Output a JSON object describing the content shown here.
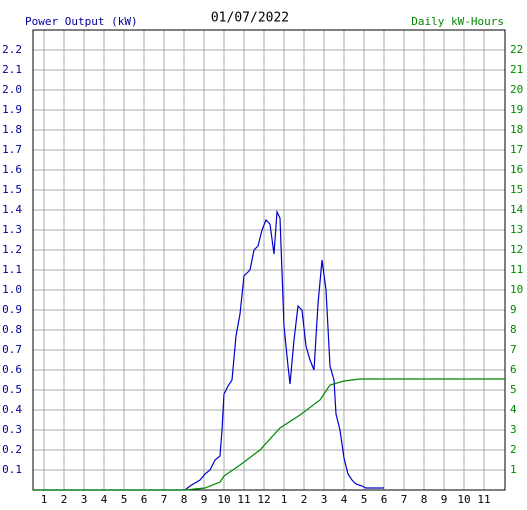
{
  "chart_data": {
    "type": "line",
    "title": "01/07/2022",
    "ylabel": "Power Output (kW)",
    "y2label": "Daily kW-Hours",
    "xlim": [
      0.45,
      24.05
    ],
    "xticks": [
      1,
      2,
      3,
      4,
      5,
      6,
      7,
      8,
      9,
      10,
      11,
      12,
      {
        "value": 13,
        "label": "1"
      },
      {
        "value": 14,
        "label": "2"
      },
      {
        "value": 15,
        "label": "3"
      },
      {
        "value": 16,
        "label": "4"
      },
      {
        "value": 17,
        "label": "5"
      },
      {
        "value": 18,
        "label": "6"
      },
      {
        "value": 19,
        "label": "7"
      },
      {
        "value": 20,
        "label": "8"
      },
      {
        "value": 21,
        "label": "9"
      },
      {
        "value": 22,
        "label": "10"
      },
      {
        "value": 23,
        "label": "11"
      }
    ],
    "ylim": [
      0,
      2.3
    ],
    "yticks": [
      0.1,
      0.2,
      0.3,
      0.4,
      0.5,
      0.6,
      0.7,
      0.8,
      0.9,
      {
        "value": 1,
        "label": "1.0"
      },
      1.1,
      1.2,
      1.3,
      1.4,
      1.5,
      1.6,
      1.7,
      1.8,
      1.9,
      {
        "value": 2,
        "label": "2.0"
      },
      2.1,
      2.2
    ],
    "y2lim": [
      0,
      23
    ],
    "y2ticks": [
      1,
      2,
      3,
      4,
      5,
      6,
      7,
      8,
      9,
      10,
      11,
      12,
      13,
      14,
      15,
      16,
      17,
      18,
      19,
      20,
      21,
      22
    ],
    "grid": true,
    "series": [
      {
        "color": "#0000cc",
        "axis": "y",
        "x": [
          0.45,
          8.05,
          8.3,
          8.8,
          9.05,
          9.3,
          9.55,
          9.8,
          9.9,
          10,
          10.2,
          10.4,
          10.6,
          10.8,
          11,
          11.3,
          11.5,
          11.7,
          11.9,
          12.1,
          12.3,
          12.5,
          12.65,
          12.8,
          13,
          13.2,
          13.3,
          13.5,
          13.7,
          13.9,
          14.1,
          14.3,
          14.5,
          14.7,
          14.9,
          15.1,
          15.3,
          15.5,
          15.6,
          15.8,
          16,
          16.2,
          16.4,
          16.6,
          16.9,
          17.1,
          18
        ],
        "values": [
          0,
          0,
          0.02,
          0.05,
          0.08,
          0.1,
          0.15,
          0.17,
          0.3,
          0.48,
          0.52,
          0.55,
          0.77,
          0.88,
          1.07,
          1.1,
          1.2,
          1.22,
          1.3,
          1.35,
          1.33,
          1.18,
          1.39,
          1.36,
          0.82,
          0.62,
          0.53,
          0.75,
          0.92,
          0.9,
          0.72,
          0.65,
          0.6,
          0.93,
          1.15,
          1.0,
          0.62,
          0.55,
          0.38,
          0.3,
          0.16,
          0.08,
          0.05,
          0.03,
          0.02,
          0.01,
          0.01
        ]
      },
      {
        "color": "#008800",
        "axis": "y2",
        "x": [
          0.45,
          8.05,
          9.05,
          9.8,
          10,
          10.8,
          11.8,
          12.8,
          13.8,
          14.8,
          15.3,
          16,
          16.8,
          24.05
        ],
        "values": [
          0,
          0,
          0.1,
          0.4,
          0.7,
          1.25,
          2,
          3.1,
          3.75,
          4.5,
          5.25,
          5.45,
          5.55,
          5.55
        ]
      }
    ]
  }
}
